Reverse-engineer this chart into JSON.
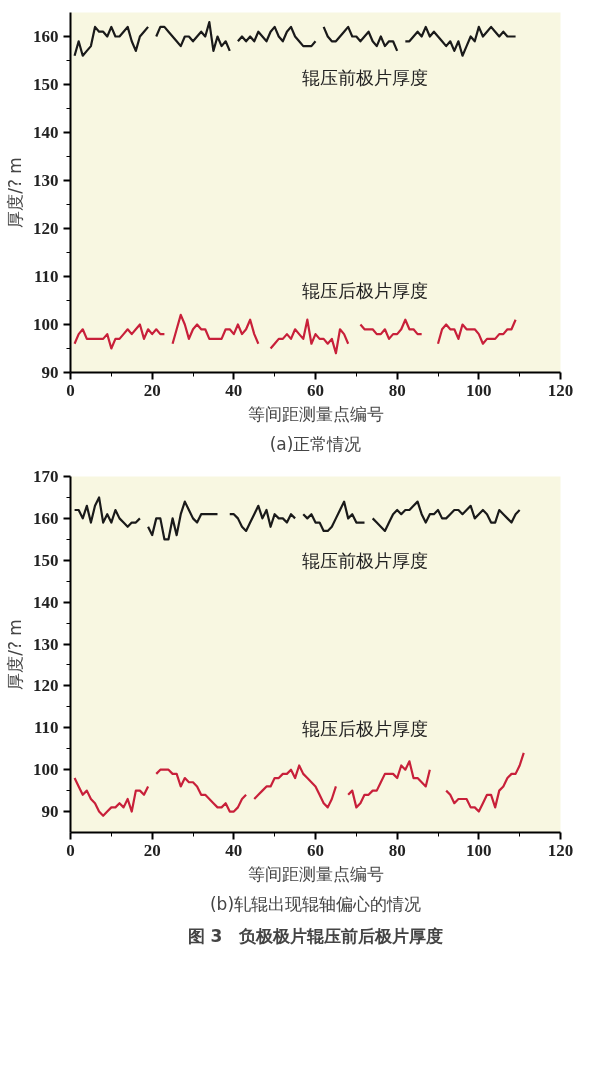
{
  "chart_data": [
    {
      "type": "line",
      "xlabel": "等间距测量点编号",
      "ylabel": "厚度/? m",
      "annotations": [
        "(a)正常情况"
      ],
      "xlim": [
        0,
        120
      ],
      "ylim": [
        90,
        165
      ],
      "xticks": [
        0,
        20,
        40,
        60,
        80,
        100,
        120
      ],
      "yticks": [
        90,
        100,
        110,
        120,
        130,
        140,
        150,
        160
      ],
      "grid": false,
      "x": [
        1,
        2,
        3,
        4,
        5,
        6,
        7,
        8,
        9,
        10,
        11,
        12,
        13,
        14,
        15,
        16,
        17,
        18,
        19,
        20,
        21,
        22,
        23,
        24,
        25,
        26,
        27,
        28,
        29,
        30,
        31,
        32,
        33,
        34,
        35,
        36,
        37,
        38,
        39,
        40,
        41,
        42,
        43,
        44,
        45,
        46,
        47,
        48,
        49,
        50,
        51,
        52,
        53,
        54,
        55,
        56,
        57,
        58,
        59,
        60,
        61,
        62,
        63,
        64,
        65,
        66,
        67,
        68,
        69,
        70,
        71,
        72,
        73,
        74,
        75,
        76,
        77,
        78,
        79,
        80,
        81,
        82,
        83,
        84,
        85,
        86,
        87,
        88,
        89,
        90,
        91,
        92,
        93,
        94,
        95,
        96,
        97,
        98,
        99,
        100,
        101,
        102,
        103,
        104,
        105,
        106,
        107,
        108,
        109
      ],
      "series": [
        {
          "name": "辊压前极片厚度",
          "color": "#1a1a1a",
          "values": [
            156,
            159,
            156,
            157,
            158,
            162,
            161,
            161,
            160,
            162,
            160,
            160,
            161,
            162,
            159,
            157,
            160,
            161,
            162,
            null,
            160,
            162,
            162,
            161,
            160,
            159,
            158,
            160,
            160,
            159,
            160,
            161,
            160,
            163,
            157,
            160,
            158,
            159,
            157,
            null,
            159,
            160,
            159,
            160,
            159,
            161,
            160,
            159,
            161,
            162,
            160,
            159,
            161,
            162,
            160,
            159,
            158,
            158,
            158,
            159,
            null,
            162,
            160,
            159,
            159,
            160,
            161,
            162,
            160,
            160,
            159,
            160,
            161,
            159,
            158,
            160,
            158,
            159,
            159,
            157,
            null,
            159,
            159,
            160,
            161,
            160,
            162,
            160,
            161,
            160,
            159,
            158,
            159,
            157,
            159,
            156,
            158,
            160,
            159,
            162,
            160,
            161,
            162,
            161,
            160,
            161,
            160,
            160,
            160
          ]
        },
        {
          "name": "辊压后极片厚度",
          "color": "#c8203a",
          "values": [
            96,
            98,
            99,
            97,
            97,
            97,
            97,
            97,
            98,
            95,
            97,
            97,
            98,
            99,
            98,
            99,
            100,
            97,
            99,
            98,
            99,
            98,
            98,
            null,
            96,
            99,
            102,
            100,
            97,
            99,
            100,
            99,
            99,
            97,
            97,
            97,
            97,
            99,
            99,
            98,
            100,
            98,
            99,
            101,
            98,
            96,
            null,
            null,
            95,
            96,
            97,
            97,
            98,
            97,
            99,
            98,
            97,
            101,
            96,
            98,
            97,
            97,
            96,
            97,
            94,
            99,
            98,
            96,
            null,
            null,
            100,
            99,
            99,
            99,
            98,
            98,
            99,
            97,
            98,
            98,
            99,
            101,
            99,
            99,
            98,
            98,
            null,
            null,
            null,
            96,
            99,
            100,
            99,
            99,
            97,
            100,
            99,
            99,
            99,
            98,
            96,
            97,
            97,
            97,
            98,
            98,
            99,
            99,
            101
          ]
        }
      ]
    },
    {
      "type": "line",
      "xlabel": "等间距测量点编号",
      "ylabel": "厚度/? m",
      "annotations": [
        "(b)轧辊出现辊轴偏心的情况",
        "图 3　负极极片辊压前后极片厚度"
      ],
      "xlim": [
        0,
        120
      ],
      "ylim": [
        85,
        170
      ],
      "xticks": [
        0,
        20,
        40,
        60,
        80,
        100,
        120
      ],
      "yticks": [
        90,
        100,
        110,
        120,
        130,
        140,
        150,
        160,
        170
      ],
      "grid": false,
      "x": [
        1,
        2,
        3,
        4,
        5,
        6,
        7,
        8,
        9,
        10,
        11,
        12,
        13,
        14,
        15,
        16,
        17,
        18,
        19,
        20,
        21,
        22,
        23,
        24,
        25,
        26,
        27,
        28,
        29,
        30,
        31,
        32,
        33,
        34,
        35,
        36,
        37,
        38,
        39,
        40,
        41,
        42,
        43,
        44,
        45,
        46,
        47,
        48,
        49,
        50,
        51,
        52,
        53,
        54,
        55,
        56,
        57,
        58,
        59,
        60,
        61,
        62,
        63,
        64,
        65,
        66,
        67,
        68,
        69,
        70,
        71,
        72,
        73,
        74,
        75,
        76,
        77,
        78,
        79,
        80,
        81,
        82,
        83,
        84,
        85,
        86,
        87,
        88,
        89,
        90,
        91,
        92,
        93,
        94,
        95,
        96,
        97,
        98,
        99,
        100,
        101,
        102,
        103,
        104,
        105,
        106,
        107,
        108,
        109,
        110,
        111
      ],
      "series": [
        {
          "name": "辊压前极片厚度",
          "color": "#1a1a1a",
          "values": [
            162,
            162,
            160,
            163,
            159,
            163,
            165,
            159,
            161,
            159,
            162,
            160,
            159,
            158,
            159,
            159,
            160,
            null,
            158,
            156,
            160,
            160,
            155,
            155,
            160,
            156,
            161,
            164,
            162,
            160,
            159,
            161,
            161,
            161,
            161,
            161,
            null,
            null,
            161,
            161,
            160,
            158,
            157,
            159,
            161,
            163,
            160,
            162,
            158,
            161,
            160,
            160,
            159,
            161,
            160,
            null,
            161,
            160,
            161,
            159,
            159,
            157,
            157,
            158,
            160,
            162,
            164,
            160,
            161,
            159,
            159,
            159,
            null,
            160,
            159,
            158,
            157,
            159,
            161,
            162,
            161,
            162,
            162,
            163,
            164,
            161,
            159,
            161,
            161,
            162,
            160,
            160,
            161,
            162,
            162,
            161,
            162,
            163,
            160,
            161,
            162,
            161,
            159,
            159,
            162,
            161,
            160,
            159,
            161,
            162,
            null
          ]
        },
        {
          "name": "辊压后极片厚度",
          "color": "#c8203a",
          "values": [
            98,
            96,
            94,
            95,
            93,
            92,
            90,
            89,
            90,
            91,
            91,
            92,
            91,
            93,
            90,
            95,
            95,
            94,
            96,
            null,
            99,
            100,
            100,
            100,
            99,
            99,
            96,
            98,
            97,
            97,
            96,
            94,
            94,
            93,
            92,
            91,
            91,
            92,
            90,
            90,
            91,
            93,
            94,
            null,
            93,
            94,
            95,
            96,
            96,
            98,
            98,
            99,
            99,
            100,
            98,
            101,
            99,
            98,
            97,
            96,
            94,
            92,
            91,
            93,
            96,
            null,
            null,
            94,
            95,
            91,
            92,
            94,
            94,
            95,
            95,
            97,
            99,
            99,
            99,
            98,
            101,
            100,
            102,
            98,
            98,
            97,
            96,
            100,
            null,
            null,
            null,
            95,
            94,
            92,
            93,
            93,
            93,
            91,
            91,
            90,
            92,
            94,
            94,
            91,
            95,
            96,
            98,
            99,
            99,
            101,
            104
          ]
        }
      ]
    }
  ]
}
